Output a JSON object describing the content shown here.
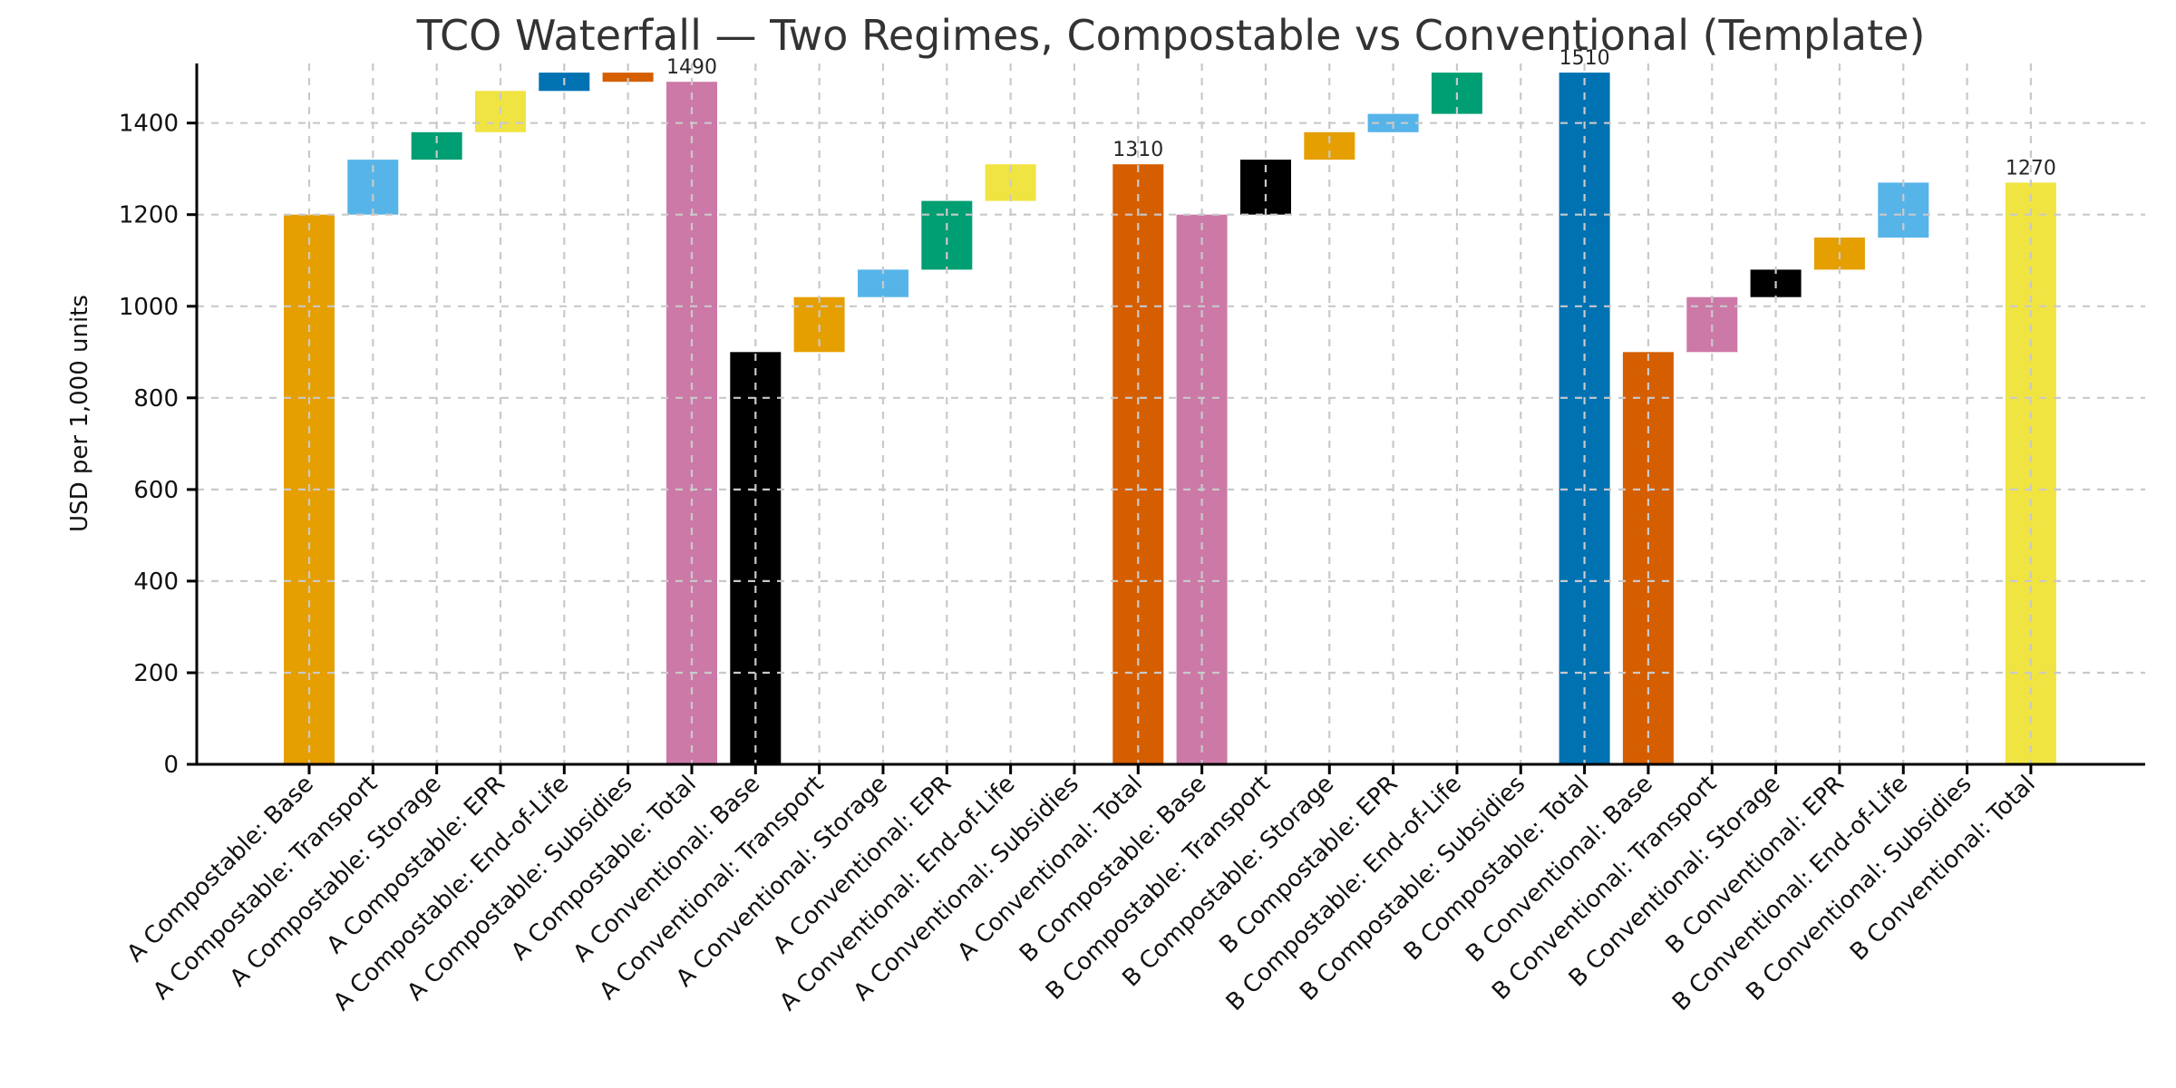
{
  "chart_data": {
    "type": "bar",
    "subtype": "waterfall",
    "title": "TCO Waterfall — Two Regimes, Compostable vs Conventional (Template)",
    "ylabel": "USD per 1,000 units",
    "xlabel": "",
    "yticks": [
      0,
      200,
      400,
      600,
      800,
      1000,
      1200,
      1400
    ],
    "ylim": [
      0,
      1530
    ],
    "grid": {
      "shown": true,
      "style": "dashed",
      "axes": "both",
      "color": "#c9c9c9",
      "drawn_over_bars": true
    },
    "legend": {
      "shown": false
    },
    "palette": [
      "#E69F00",
      "#56B4E9",
      "#009E73",
      "#F0E442",
      "#0072B2",
      "#D55E00",
      "#CC79A7",
      "#000000"
    ],
    "palette_name": "okabe-ito-cycled-per-bar",
    "bars": [
      {
        "category": "A Compostable: Base",
        "from": 0,
        "to": 1200
      },
      {
        "category": "A Compostable: Transport",
        "from": 1200,
        "to": 1320
      },
      {
        "category": "A Compostable: Storage",
        "from": 1320,
        "to": 1380
      },
      {
        "category": "A Compostable: EPR",
        "from": 1380,
        "to": 1470
      },
      {
        "category": "A Compostable: End-of-Life",
        "from": 1470,
        "to": 1510
      },
      {
        "category": "A Compostable: Subsidies",
        "from": 1510,
        "to": 1490
      },
      {
        "category": "A Compostable: Total",
        "from": 0,
        "to": 1490,
        "annotation": "1490"
      },
      {
        "category": "A Conventional: Base",
        "from": 0,
        "to": 900
      },
      {
        "category": "A Conventional: Transport",
        "from": 900,
        "to": 1020
      },
      {
        "category": "A Conventional: Storage",
        "from": 1020,
        "to": 1080
      },
      {
        "category": "A Conventional: EPR",
        "from": 1080,
        "to": 1230
      },
      {
        "category": "A Conventional: End-of-Life",
        "from": 1230,
        "to": 1310
      },
      {
        "category": "A Conventional: Subsidies",
        "from": 1310,
        "to": 1310
      },
      {
        "category": "A Conventional: Total",
        "from": 0,
        "to": 1310,
        "annotation": "1310"
      },
      {
        "category": "B Compostable: Base",
        "from": 0,
        "to": 1200
      },
      {
        "category": "B Compostable: Transport",
        "from": 1200,
        "to": 1320
      },
      {
        "category": "B Compostable: Storage",
        "from": 1320,
        "to": 1380
      },
      {
        "category": "B Compostable: EPR",
        "from": 1380,
        "to": 1420
      },
      {
        "category": "B Compostable: End-of-Life",
        "from": 1420,
        "to": 1510
      },
      {
        "category": "B Compostable: Subsidies",
        "from": 1510,
        "to": 1510
      },
      {
        "category": "B Compostable: Total",
        "from": 0,
        "to": 1510,
        "annotation": "1510"
      },
      {
        "category": "B Conventional: Base",
        "from": 0,
        "to": 900
      },
      {
        "category": "B Conventional: Transport",
        "from": 900,
        "to": 1020
      },
      {
        "category": "B Conventional: Storage",
        "from": 1020,
        "to": 1080
      },
      {
        "category": "B Conventional: EPR",
        "from": 1080,
        "to": 1150
      },
      {
        "category": "B Conventional: End-of-Life",
        "from": 1150,
        "to": 1270
      },
      {
        "category": "B Conventional: Subsidies",
        "from": 1270,
        "to": 1270
      },
      {
        "category": "B Conventional: Total",
        "from": 0,
        "to": 1270,
        "annotation": "1270"
      }
    ]
  }
}
